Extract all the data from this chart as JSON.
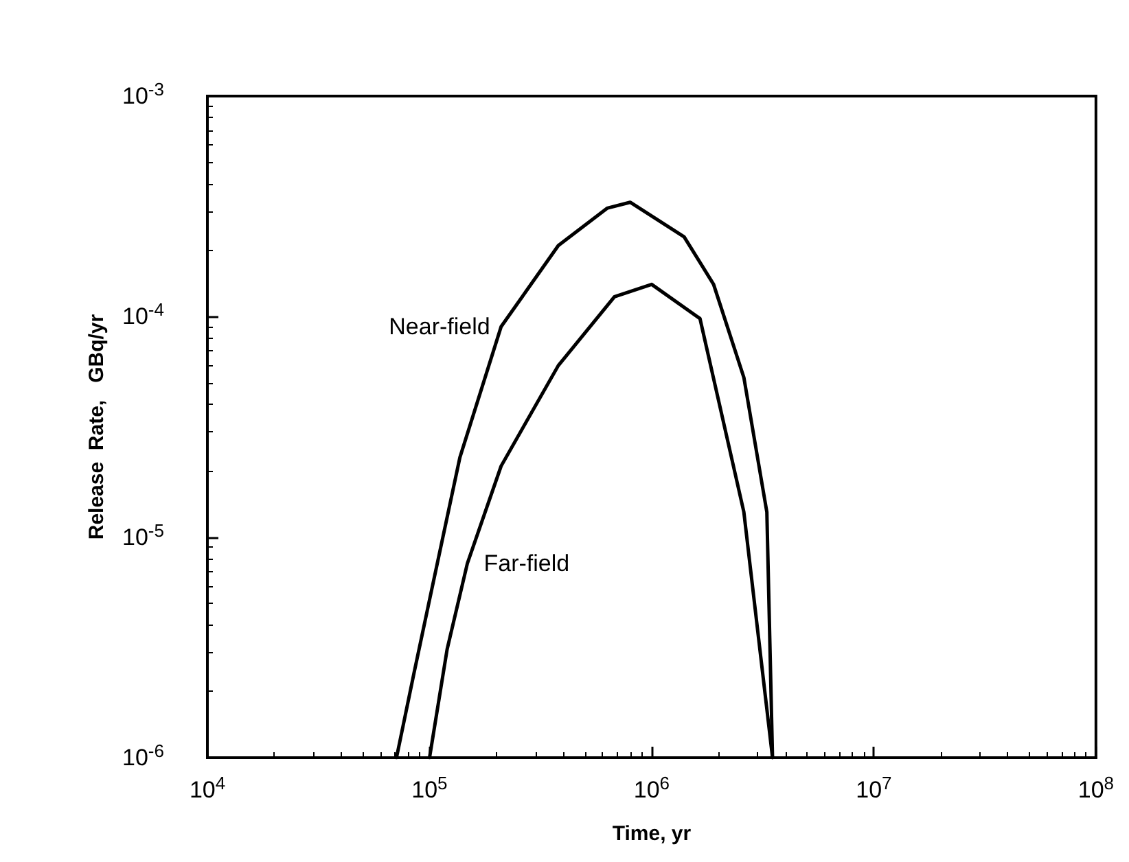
{
  "chart_data": {
    "type": "line",
    "xlabel": "Time, yr",
    "ylabel": "Release  Rate,   GBq/yr",
    "log": "xy",
    "xlim": [
      10000,
      100000000
    ],
    "xticks": [
      {
        "value": 10000,
        "label": "10$^{4}$"
      },
      {
        "value": 100000,
        "label": "10$^{5}$"
      },
      {
        "value": 1000000,
        "label": "10$^{6}$"
      },
      {
        "value": 10000000,
        "label": "10$^{7}$"
      },
      {
        "value": 100000000,
        "label": "10$^{8}$"
      }
    ],
    "ylim": [
      1e-06,
      0.001
    ],
    "yticks": [
      {
        "value": 1e-06,
        "label": "10$^{-6}$"
      },
      {
        "value": 1e-05,
        "label": "10$^{-5}$"
      },
      {
        "value": 0.0001,
        "label": "10$^{-4}$"
      },
      {
        "value": 0.001,
        "label": "10$^{-3}$"
      }
    ],
    "grid": false,
    "legend": false,
    "marker": "none",
    "line_style": "solid",
    "series": [
      {
        "name": "Near-field",
        "color": "#000000",
        "x": [
          71000,
          85000,
          100000,
          137000,
          210000,
          380000,
          630000,
          800000,
          1400000,
          1900000,
          2600000,
          3300000,
          3500000
        ],
        "values": [
          1e-06,
          2.4e-06,
          5.2e-06,
          2.3e-05,
          9e-05,
          0.00021,
          0.00031,
          0.00033,
          0.00023,
          0.00014,
          5.3e-05,
          1.3e-05,
          1e-06
        ]
      },
      {
        "name": "Far-field",
        "color": "#000000",
        "x": [
          100000,
          120000,
          148000,
          210000,
          380000,
          680000,
          1000000,
          1650000,
          2600000,
          3500000
        ],
        "values": [
          1e-06,
          3.1e-06,
          7.6e-06,
          2.1e-05,
          6e-05,
          0.000123,
          0.00014,
          9.8e-05,
          1.3e-05,
          1e-06
        ]
      }
    ]
  }
}
